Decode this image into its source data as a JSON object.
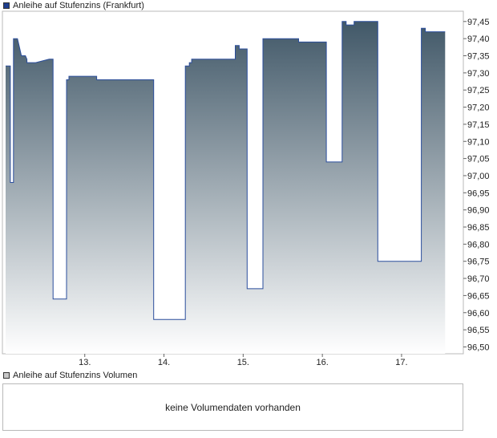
{
  "legend": {
    "price_label": "Anleihe auf Stufenzins (Frankfurt)",
    "price_color": "#1f3f8f",
    "volume_label": "Anleihe auf Stufenzins Volumen",
    "volume_color": "#c8c8c8"
  },
  "volume_panel": {
    "message": "keine Volumendaten vorhanden"
  },
  "chart_data": {
    "type": "area",
    "series": [
      {
        "name": "Anleihe auf Stufenzins (Frankfurt)",
        "x": [
          12.0,
          12.06,
          12.06,
          12.1,
          12.1,
          12.15,
          12.15,
          12.2,
          12.25,
          12.27,
          12.27,
          12.38,
          12.38,
          12.55,
          12.55,
          12.6,
          12.6,
          12.6,
          12.6,
          12.77,
          12.77,
          12.8,
          12.8,
          12.87,
          12.87,
          13.15,
          13.15,
          13.3,
          13.3,
          13.36,
          13.36,
          13.5,
          13.5,
          13.7,
          13.7,
          13.87,
          13.87,
          14.05,
          14.05,
          14.27,
          14.27,
          14.32,
          14.32,
          14.35,
          14.35,
          14.55,
          14.55,
          14.9,
          14.9,
          14.95,
          14.95,
          15.05,
          15.05,
          15.25,
          15.25,
          15.3,
          15.3,
          15.7,
          15.7,
          15.73,
          15.73,
          16.05,
          16.05,
          16.25,
          16.25,
          16.3,
          16.3,
          16.35,
          16.35,
          16.4,
          16.4,
          16.65,
          16.65,
          16.7,
          16.7,
          17.05,
          17.05,
          17.25,
          17.25,
          17.3,
          17.3,
          17.35,
          17.35,
          17.55
        ],
        "values": [
          97.32,
          97.32,
          96.98,
          96.98,
          97.4,
          97.4,
          97.4,
          97.35,
          97.35,
          97.34,
          97.33,
          97.33,
          97.33,
          97.34,
          97.34,
          97.34,
          97.34,
          96.64,
          96.64,
          96.64,
          97.28,
          97.28,
          97.29,
          97.29,
          97.29,
          97.29,
          97.28,
          97.28,
          97.28,
          97.28,
          97.28,
          97.28,
          97.28,
          97.28,
          97.28,
          97.28,
          96.58,
          96.58,
          96.58,
          96.58,
          97.32,
          97.32,
          97.33,
          97.33,
          97.34,
          97.34,
          97.34,
          97.34,
          97.38,
          97.38,
          97.37,
          97.37,
          96.67,
          96.67,
          97.4,
          97.4,
          97.4,
          97.4,
          97.39,
          97.39,
          97.39,
          97.39,
          97.04,
          97.04,
          97.45,
          97.45,
          97.44,
          97.44,
          97.44,
          97.44,
          97.45,
          97.45,
          97.45,
          97.45,
          96.75,
          96.75,
          96.75,
          96.75,
          97.43,
          97.43,
          97.42,
          97.42,
          97.42,
          97.42
        ]
      }
    ],
    "x_ticks": [
      {
        "value": 13,
        "label": "13."
      },
      {
        "value": 14,
        "label": "14."
      },
      {
        "value": 15,
        "label": "15."
      },
      {
        "value": 16,
        "label": "16."
      },
      {
        "value": 17,
        "label": "17."
      }
    ],
    "y_ticks": [
      "96,50",
      "96,55",
      "96,60",
      "96,65",
      "96,70",
      "96,75",
      "96,80",
      "96,85",
      "96,90",
      "96,95",
      "97,00",
      "97,05",
      "97,10",
      "97,15",
      "97,20",
      "97,25",
      "97,30",
      "97,35",
      "97,40",
      "97,45"
    ],
    "ylim": [
      96.48,
      97.48
    ],
    "xlim": [
      11.96,
      17.78
    ],
    "grid": false,
    "line_color": "#2a4d9c",
    "fill_top_color": "#415868",
    "fill_bottom_color": "#ffffff"
  }
}
